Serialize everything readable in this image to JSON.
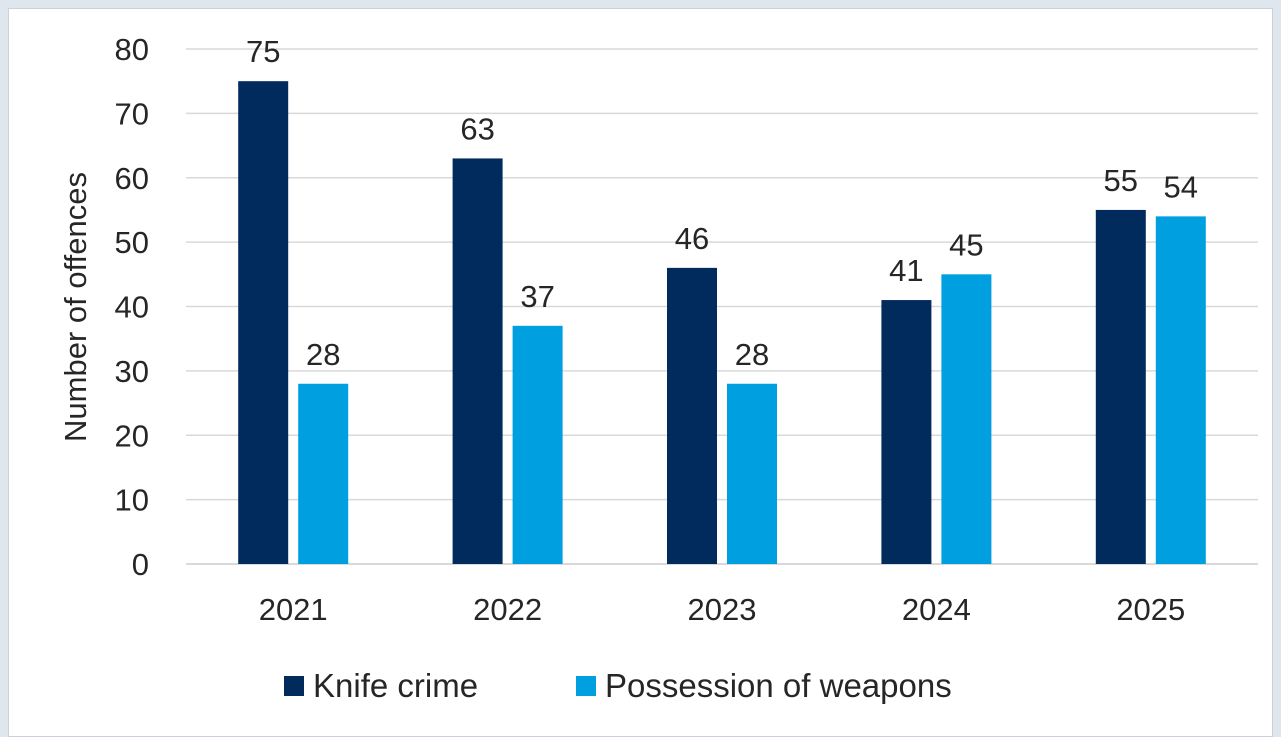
{
  "chart_data": {
    "type": "bar",
    "categories": [
      "2021",
      "2022",
      "2023",
      "2024",
      "2025"
    ],
    "series": [
      {
        "name": "Knife crime",
        "values": [
          75,
          63,
          46,
          41,
          55
        ],
        "color": "#002b5c"
      },
      {
        "name": "Possession of weapons",
        "values": [
          28,
          37,
          28,
          45,
          54
        ],
        "color": "#009fe0"
      }
    ],
    "title": "",
    "xlabel": "",
    "ylabel": "Number of offences",
    "ylim": [
      0,
      80
    ],
    "yticks": [
      "0",
      "10",
      "20",
      "30",
      "40",
      "50",
      "60",
      "70",
      "80"
    ],
    "grid": true,
    "legend_position": "bottom",
    "colors": {
      "gridline": "#d9d9d9",
      "text": "#262626",
      "frame_border": "#c9d2dc"
    }
  }
}
